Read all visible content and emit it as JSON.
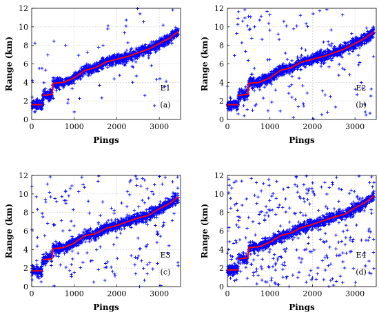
{
  "chart_data": [
    {
      "type": "scatter",
      "xlabel": "Pings",
      "ylabel": "Range (km)",
      "xlim": [
        0,
        3500
      ],
      "ylim": [
        0,
        12
      ],
      "xticks": [
        0,
        1000,
        2000,
        3000
      ],
      "yticks": [
        0,
        2,
        4,
        6,
        8,
        10,
        12
      ],
      "grid": true,
      "annotation_id": "E1",
      "panel_label": "(a)",
      "series": [
        {
          "role": "measurements",
          "color": "#0000ff",
          "marker": "+",
          "outlier_fraction": 0.05
        },
        {
          "role": "reference",
          "color": "#ff0000",
          "x": [
            0,
            250,
            260,
            480,
            500,
            750,
            1000,
            1250,
            1500,
            1750,
            2000,
            2250,
            2500,
            2750,
            3000,
            3250,
            3450
          ],
          "y": [
            1.6,
            1.6,
            2.6,
            2.7,
            3.9,
            4.0,
            4.5,
            5.3,
            5.6,
            6.2,
            6.5,
            6.8,
            7.2,
            7.6,
            8.2,
            8.8,
            9.5
          ]
        }
      ]
    },
    {
      "type": "scatter",
      "xlabel": "Pings",
      "ylabel": "Range (km)",
      "xlim": [
        0,
        3500
      ],
      "ylim": [
        0,
        12
      ],
      "xticks": [
        0,
        1000,
        2000,
        3000
      ],
      "yticks": [
        0,
        2,
        4,
        6,
        8,
        10,
        12
      ],
      "grid": true,
      "annotation_id": "E2",
      "panel_label": "(b)",
      "series": [
        {
          "role": "measurements",
          "color": "#0000ff",
          "marker": "+",
          "outlier_fraction": 0.08
        },
        {
          "role": "reference",
          "color": "#ff0000",
          "x": [
            0,
            250,
            260,
            480,
            500,
            750,
            1000,
            1250,
            1500,
            1750,
            2000,
            2250,
            2500,
            2750,
            3000,
            3250,
            3450
          ],
          "y": [
            1.6,
            1.6,
            2.6,
            2.7,
            3.9,
            4.0,
            4.5,
            5.3,
            5.6,
            6.2,
            6.5,
            6.8,
            7.2,
            7.6,
            8.2,
            8.8,
            9.5
          ]
        }
      ]
    },
    {
      "type": "scatter",
      "xlabel": "Pings",
      "ylabel": "Range (km)",
      "xlim": [
        0,
        3500
      ],
      "ylim": [
        0,
        12
      ],
      "xticks": [
        0,
        1000,
        2000,
        3000
      ],
      "yticks": [
        0,
        2,
        4,
        6,
        8,
        10,
        12
      ],
      "grid": true,
      "annotation_id": "E3",
      "panel_label": "(c)",
      "series": [
        {
          "role": "measurements",
          "color": "#0000ff",
          "marker": "+",
          "outlier_fraction": 0.12
        },
        {
          "role": "reference",
          "color": "#ff0000",
          "x": [
            0,
            250,
            260,
            480,
            500,
            750,
            1000,
            1250,
            1500,
            1750,
            2000,
            2250,
            2500,
            2750,
            3000,
            3250,
            3450
          ],
          "y": [
            1.7,
            1.7,
            2.9,
            3.0,
            4.1,
            4.2,
            4.7,
            5.5,
            5.7,
            6.3,
            6.6,
            7.0,
            7.4,
            7.7,
            8.4,
            9.0,
            9.7
          ]
        }
      ]
    },
    {
      "type": "scatter",
      "xlabel": "Pings",
      "ylabel": "Range (km)",
      "xlim": [
        0,
        3500
      ],
      "ylim": [
        0,
        12
      ],
      "xticks": [
        0,
        1000,
        2000,
        3000
      ],
      "yticks": [
        0,
        2,
        4,
        6,
        8,
        10,
        12
      ],
      "grid": true,
      "annotation_id": "E4",
      "panel_label": "(d)",
      "series": [
        {
          "role": "measurements",
          "color": "#0000ff",
          "marker": "+",
          "outlier_fraction": 0.18
        },
        {
          "role": "reference",
          "color": "#ff0000",
          "x": [
            0,
            250,
            260,
            480,
            500,
            750,
            1000,
            1250,
            1500,
            1750,
            2000,
            2250,
            2500,
            2750,
            3000,
            3250,
            3450
          ],
          "y": [
            1.8,
            1.8,
            3.0,
            3.1,
            4.2,
            4.3,
            4.8,
            5.5,
            5.8,
            6.4,
            6.7,
            7.1,
            7.5,
            7.8,
            8.5,
            9.1,
            9.8
          ]
        }
      ]
    }
  ]
}
